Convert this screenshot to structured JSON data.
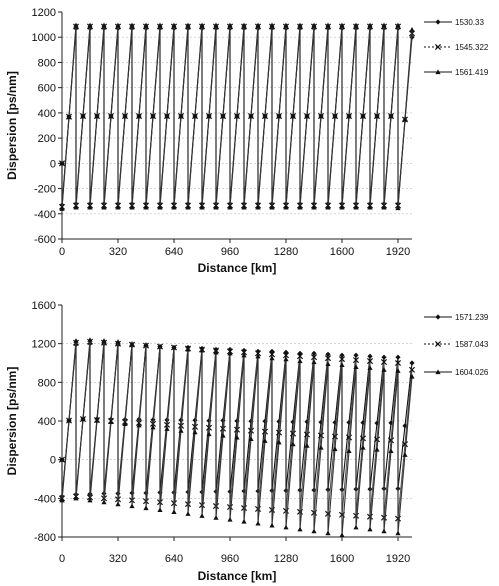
{
  "chart_data": [
    {
      "type": "line",
      "xlabel": "Distance [km]",
      "ylabel": "Dispersion [ps/nm]",
      "xlim": [
        0,
        2000
      ],
      "ylim": [
        -600,
        1200
      ],
      "xticks": [
        "0",
        "320",
        "640",
        "960",
        "1280",
        "1600",
        "1920"
      ],
      "xtick_values": [
        0,
        320,
        640,
        960,
        1280,
        1600,
        1920
      ],
      "yticks": [
        "-600",
        "-400",
        "-200",
        "0",
        "200",
        "400",
        "600",
        "800",
        "1000",
        "1200"
      ],
      "ytick_values": [
        -600,
        -400,
        -200,
        0,
        200,
        400,
        600,
        800,
        1000,
        1200
      ],
      "grid": true,
      "legend_position": "right",
      "sawtooth": {
        "start_km": 0,
        "span_km": 80,
        "spans": 25,
        "dcm_km": 0.0001,
        "start_value": 0,
        "note_markers_per_span": 3
      },
      "series": [
        {
          "name": "1530.33",
          "marker": "diamond",
          "peaks": [
            1070,
            1070,
            1070,
            1070,
            1070,
            1070,
            1070,
            1070,
            1070,
            1070,
            1070,
            1070,
            1070,
            1070,
            1070,
            1070,
            1070,
            1070,
            1070,
            1070,
            1070,
            1070,
            1070,
            1070,
            1000
          ],
          "troughs": [
            -330,
            -320,
            -320,
            -320,
            -320,
            -320,
            -320,
            -320,
            -320,
            -320,
            -320,
            -320,
            -320,
            -320,
            -320,
            -320,
            -320,
            -320,
            -320,
            -320,
            -320,
            -320,
            -320,
            -320,
            -320
          ]
        },
        {
          "name": "1545.322",
          "marker": "x",
          "peaks": [
            1085,
            1085,
            1085,
            1085,
            1085,
            1085,
            1085,
            1085,
            1085,
            1085,
            1085,
            1085,
            1085,
            1085,
            1085,
            1085,
            1085,
            1085,
            1085,
            1085,
            1085,
            1085,
            1085,
            1085,
            1030
          ],
          "troughs": [
            -345,
            -335,
            -335,
            -335,
            -335,
            -335,
            -335,
            -335,
            -335,
            -335,
            -335,
            -335,
            -335,
            -335,
            -335,
            -335,
            -335,
            -335,
            -335,
            -335,
            -335,
            -335,
            -335,
            -335,
            -335
          ]
        },
        {
          "name": "1561.419",
          "marker": "triangle",
          "peaks": [
            1095,
            1095,
            1095,
            1095,
            1095,
            1095,
            1095,
            1095,
            1095,
            1095,
            1095,
            1095,
            1095,
            1095,
            1095,
            1095,
            1095,
            1095,
            1095,
            1095,
            1095,
            1095,
            1095,
            1095,
            1060
          ],
          "troughs": [
            -360,
            -350,
            -350,
            -350,
            -350,
            -350,
            -350,
            -350,
            -350,
            -350,
            -350,
            -350,
            -350,
            -350,
            -350,
            -350,
            -350,
            -350,
            -350,
            -350,
            -350,
            -350,
            -350,
            -350,
            -355
          ]
        }
      ]
    },
    {
      "type": "line",
      "xlabel": "Distance [km]",
      "ylabel": "Dispersion [ps/nm]",
      "xlim": [
        0,
        2000
      ],
      "ylim": [
        -800,
        1600
      ],
      "xticks": [
        "0",
        "320",
        "640",
        "960",
        "1280",
        "1600",
        "1920"
      ],
      "xtick_values": [
        0,
        320,
        640,
        960,
        1280,
        1600,
        1920
      ],
      "yticks": [
        "-800",
        "-400",
        "0",
        "400",
        "800",
        "1200",
        "1600"
      ],
      "ytick_values": [
        -800,
        -400,
        0,
        400,
        800,
        1200,
        1600
      ],
      "grid": true,
      "legend_position": "right",
      "sawtooth": {
        "start_km": 0,
        "span_km": 80,
        "spans": 25,
        "start_value": 0
      },
      "series": [
        {
          "name": "1571.239",
          "marker": "diamond",
          "peaks": [
            1190,
            1200,
            1200,
            1190,
            1180,
            1180,
            1170,
            1160,
            1160,
            1150,
            1140,
            1140,
            1130,
            1120,
            1120,
            1110,
            1100,
            1100,
            1090,
            1080,
            1080,
            1070,
            1060,
            1060,
            1000
          ],
          "troughs": [
            -380,
            -360,
            -355,
            -350,
            -350,
            -345,
            -345,
            -340,
            -340,
            -335,
            -335,
            -330,
            -330,
            -325,
            -325,
            -320,
            -320,
            -315,
            -315,
            -310,
            -310,
            -305,
            -305,
            -300,
            -300
          ]
        },
        {
          "name": "1587.043",
          "marker": "x",
          "peaks": [
            1210,
            1220,
            1210,
            1200,
            1190,
            1180,
            1170,
            1160,
            1150,
            1140,
            1130,
            1120,
            1110,
            1100,
            1090,
            1080,
            1070,
            1060,
            1050,
            1040,
            1030,
            1020,
            1010,
            1000,
            930
          ],
          "troughs": [
            -400,
            -380,
            -390,
            -400,
            -410,
            -420,
            -430,
            -440,
            -450,
            -460,
            -470,
            -480,
            -490,
            -500,
            -510,
            -520,
            -530,
            -540,
            -550,
            -560,
            -570,
            -580,
            -590,
            -600,
            -610
          ]
        },
        {
          "name": "1604.026",
          "marker": "triangle",
          "peaks": [
            1230,
            1240,
            1230,
            1220,
            1200,
            1190,
            1170,
            1160,
            1140,
            1130,
            1110,
            1100,
            1080,
            1070,
            1050,
            1040,
            1020,
            1010,
            990,
            980,
            960,
            950,
            930,
            920,
            860
          ],
          "troughs": [
            -420,
            -400,
            -420,
            -440,
            -460,
            -480,
            -500,
            -520,
            -540,
            -560,
            -580,
            -600,
            -620,
            -640,
            -660,
            -680,
            -700,
            -720,
            -740,
            -760,
            -780,
            -700,
            -720,
            -740,
            -760
          ]
        }
      ]
    }
  ]
}
